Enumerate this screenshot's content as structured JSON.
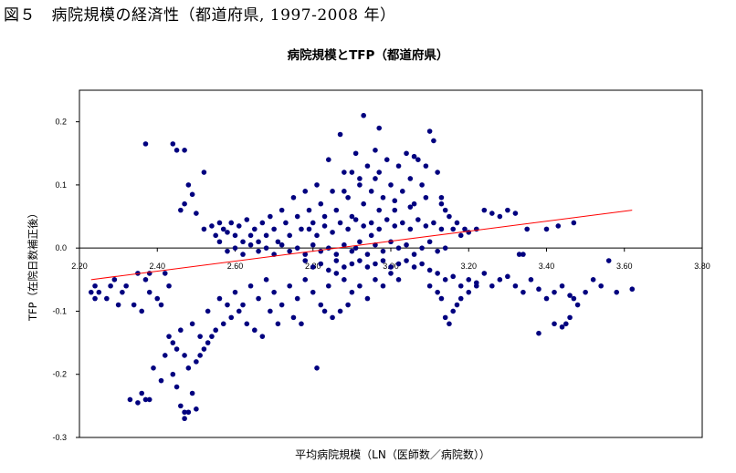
{
  "figure": {
    "title": "図５　病院規模の経済性（都道府県, 1997-2008 年）"
  },
  "chart_data": {
    "type": "scatter",
    "title": "病院規模とTFP（都道府県）",
    "xlabel": "平均病院規模（LN（医師数／病院数））",
    "ylabel": "TFP（在院日数補正後）",
    "xlim": [
      2.2,
      3.8
    ],
    "ylim": [
      -0.3,
      0.25
    ],
    "x_ticks": [
      "2.20",
      "2.40",
      "2.60",
      "2.80",
      "3.00",
      "3.20",
      "3.40",
      "3.60",
      "3.80"
    ],
    "y_ticks": [
      "0.2",
      "0.1",
      "0.0",
      "-0.1",
      "-0.2",
      "-0.3"
    ],
    "grid": false,
    "legend": "none",
    "point_color": "#00007f",
    "trend_color": "#ff0000",
    "trendline": {
      "x": [
        2.23,
        3.62
      ],
      "y": [
        -0.05,
        0.06
      ]
    },
    "series": [
      {
        "points": [
          [
            2.23,
            -0.07
          ],
          [
            2.24,
            -0.08
          ],
          [
            2.25,
            -0.07
          ],
          [
            2.27,
            -0.08
          ],
          [
            2.28,
            -0.06
          ],
          [
            2.3,
            -0.09
          ],
          [
            2.31,
            -0.07
          ],
          [
            2.32,
            -0.06
          ],
          [
            2.34,
            -0.09
          ],
          [
            2.35,
            -0.04
          ],
          [
            2.37,
            -0.05
          ],
          [
            2.38,
            -0.04
          ],
          [
            2.38,
            -0.07
          ],
          [
            2.24,
            -0.06
          ],
          [
            2.29,
            -0.05
          ],
          [
            2.36,
            -0.1
          ],
          [
            2.4,
            -0.08
          ],
          [
            2.42,
            -0.04
          ],
          [
            2.41,
            -0.09
          ],
          [
            2.43,
            -0.06
          ],
          [
            2.33,
            -0.24
          ],
          [
            2.35,
            -0.245
          ],
          [
            2.37,
            -0.24
          ],
          [
            2.38,
            -0.24
          ],
          [
            2.36,
            -0.23
          ],
          [
            2.39,
            -0.19
          ],
          [
            2.41,
            -0.21
          ],
          [
            2.42,
            -0.17
          ],
          [
            2.44,
            -0.2
          ],
          [
            2.45,
            -0.22
          ],
          [
            2.46,
            -0.25
          ],
          [
            2.47,
            -0.27
          ],
          [
            2.48,
            -0.26
          ],
          [
            2.5,
            -0.255
          ],
          [
            2.47,
            -0.26
          ],
          [
            2.49,
            -0.23
          ],
          [
            2.43,
            -0.14
          ],
          [
            2.44,
            -0.15
          ],
          [
            2.45,
            -0.16
          ],
          [
            2.47,
            -0.17
          ],
          [
            2.48,
            -0.19
          ],
          [
            2.5,
            -0.18
          ],
          [
            2.51,
            -0.17
          ],
          [
            2.52,
            -0.16
          ],
          [
            2.53,
            -0.15
          ],
          [
            2.54,
            -0.14
          ],
          [
            2.55,
            -0.13
          ],
          [
            2.57,
            -0.12
          ],
          [
            2.59,
            -0.11
          ],
          [
            2.61,
            -0.1
          ],
          [
            2.63,
            -0.12
          ],
          [
            2.65,
            -0.13
          ],
          [
            2.67,
            -0.14
          ],
          [
            2.69,
            -0.1
          ],
          [
            2.71,
            -0.12
          ],
          [
            2.46,
            -0.13
          ],
          [
            2.49,
            -0.12
          ],
          [
            2.51,
            -0.14
          ],
          [
            2.53,
            -0.1
          ],
          [
            2.56,
            -0.08
          ],
          [
            2.58,
            -0.09
          ],
          [
            2.6,
            -0.07
          ],
          [
            2.62,
            -0.09
          ],
          [
            2.64,
            -0.06
          ],
          [
            2.66,
            -0.08
          ],
          [
            2.68,
            -0.05
          ],
          [
            2.7,
            -0.07
          ],
          [
            2.72,
            -0.09
          ],
          [
            2.74,
            -0.06
          ],
          [
            2.76,
            -0.08
          ],
          [
            2.78,
            -0.05
          ],
          [
            2.8,
            -0.07
          ],
          [
            2.82,
            -0.09
          ],
          [
            2.84,
            -0.06
          ],
          [
            2.86,
            -0.04
          ],
          [
            2.88,
            -0.05
          ],
          [
            2.9,
            -0.07
          ],
          [
            2.92,
            -0.06
          ],
          [
            2.94,
            -0.08
          ],
          [
            2.96,
            -0.05
          ],
          [
            2.98,
            -0.06
          ],
          [
            3.0,
            -0.04
          ],
          [
            3.02,
            -0.05
          ],
          [
            2.81,
            -0.19
          ],
          [
            2.83,
            -0.1
          ],
          [
            2.85,
            -0.11
          ],
          [
            2.87,
            -0.1
          ],
          [
            2.89,
            -0.09
          ],
          [
            2.75,
            -0.11
          ],
          [
            2.77,
            -0.12
          ],
          [
            2.37,
            0.165
          ],
          [
            2.44,
            0.165
          ],
          [
            2.45,
            0.155
          ],
          [
            2.47,
            0.155
          ],
          [
            2.52,
            0.12
          ],
          [
            2.48,
            0.1
          ],
          [
            2.49,
            0.085
          ],
          [
            2.47,
            0.07
          ],
          [
            2.5,
            0.055
          ],
          [
            2.46,
            0.06
          ],
          [
            2.52,
            0.03
          ],
          [
            2.54,
            0.035
          ],
          [
            2.55,
            0.02
          ],
          [
            2.56,
            0.04
          ],
          [
            2.57,
            0.03
          ],
          [
            2.58,
            0.025
          ],
          [
            2.59,
            0.04
          ],
          [
            2.6,
            0.02
          ],
          [
            2.61,
            0.035
          ],
          [
            2.62,
            0.01
          ],
          [
            2.63,
            0.045
          ],
          [
            2.64,
            0.02
          ],
          [
            2.65,
            0.03
          ],
          [
            2.66,
            0.01
          ],
          [
            2.67,
            0.04
          ],
          [
            2.68,
            0.02
          ],
          [
            2.69,
            0.05
          ],
          [
            2.7,
            0.03
          ],
          [
            2.71,
            0.01
          ],
          [
            2.72,
            0.06
          ],
          [
            2.73,
            0.04
          ],
          [
            2.74,
            0.02
          ],
          [
            2.75,
            0.08
          ],
          [
            2.76,
            0.05
          ],
          [
            2.77,
            0.03
          ],
          [
            2.78,
            0.09
          ],
          [
            2.79,
            0.06
          ],
          [
            2.8,
            0.04
          ],
          [
            2.81,
            0.1
          ],
          [
            2.82,
            0.07
          ],
          [
            2.83,
            0.05
          ],
          [
            2.84,
            0.14
          ],
          [
            2.85,
            0.09
          ],
          [
            2.86,
            0.06
          ],
          [
            2.87,
            0.18
          ],
          [
            2.88,
            0.12
          ],
          [
            2.89,
            0.08
          ],
          [
            2.9,
            0.05
          ],
          [
            2.91,
            0.15
          ],
          [
            2.92,
            0.11
          ],
          [
            2.93,
            0.21
          ],
          [
            2.94,
            0.13
          ],
          [
            2.95,
            0.09
          ],
          [
            2.96,
            0.155
          ],
          [
            2.97,
            0.12
          ],
          [
            2.98,
            0.08
          ],
          [
            2.99,
            0.14
          ],
          [
            3.0,
            0.1
          ],
          [
            3.01,
            0.06
          ],
          [
            3.02,
            0.13
          ],
          [
            3.03,
            0.09
          ],
          [
            3.04,
            0.15
          ],
          [
            3.05,
            0.11
          ],
          [
            3.06,
            0.07
          ],
          [
            3.07,
            0.14
          ],
          [
            3.08,
            0.1
          ],
          [
            3.09,
            0.13
          ],
          [
            3.1,
            0.185
          ],
          [
            3.11,
            0.17
          ],
          [
            3.12,
            0.12
          ],
          [
            3.13,
            0.08
          ],
          [
            3.14,
            0.06
          ],
          [
            3.15,
            0.05
          ],
          [
            3.16,
            0.03
          ],
          [
            3.17,
            0.04
          ],
          [
            3.18,
            0.02
          ],
          [
            3.19,
            0.03
          ],
          [
            3.2,
            0.025
          ],
          [
            3.22,
            0.03
          ],
          [
            3.24,
            0.06
          ],
          [
            3.26,
            0.055
          ],
          [
            3.28,
            0.05
          ],
          [
            3.3,
            0.06
          ],
          [
            3.32,
            0.055
          ],
          [
            3.35,
            0.03
          ],
          [
            3.4,
            0.03
          ],
          [
            3.43,
            0.035
          ],
          [
            3.47,
            0.04
          ],
          [
            2.91,
            0.0
          ],
          [
            2.95,
            0.02
          ],
          [
            2.56,
            0.01
          ],
          [
            2.58,
            -0.005
          ],
          [
            2.6,
            0.0
          ],
          [
            2.62,
            -0.01
          ],
          [
            2.64,
            0.005
          ],
          [
            2.66,
            -0.005
          ],
          [
            2.68,
            0.0
          ],
          [
            2.7,
            -0.01
          ],
          [
            2.72,
            0.005
          ],
          [
            2.74,
            -0.005
          ],
          [
            2.76,
            0.0
          ],
          [
            2.78,
            -0.01
          ],
          [
            2.8,
            0.005
          ],
          [
            2.82,
            -0.005
          ],
          [
            2.84,
            0.0
          ],
          [
            2.86,
            -0.01
          ],
          [
            2.88,
            0.005
          ],
          [
            2.9,
            -0.005
          ],
          [
            2.92,
            0.01
          ],
          [
            2.94,
            -0.01
          ],
          [
            2.96,
            0.005
          ],
          [
            2.98,
            -0.005
          ],
          [
            3.0,
            0.01
          ],
          [
            3.02,
            0.0
          ],
          [
            3.04,
            0.005
          ],
          [
            3.06,
            -0.01
          ],
          [
            3.08,
            0.0
          ],
          [
            3.1,
            0.01
          ],
          [
            3.12,
            -0.005
          ],
          [
            3.14,
            0.0
          ],
          [
            2.78,
            -0.02
          ],
          [
            2.8,
            -0.03
          ],
          [
            2.82,
            -0.025
          ],
          [
            2.84,
            -0.035
          ],
          [
            2.86,
            -0.02
          ],
          [
            2.88,
            -0.03
          ],
          [
            2.9,
            -0.025
          ],
          [
            2.92,
            -0.02
          ],
          [
            2.94,
            -0.03
          ],
          [
            2.96,
            -0.025
          ],
          [
            2.98,
            -0.02
          ],
          [
            3.0,
            -0.03
          ],
          [
            3.02,
            -0.025
          ],
          [
            3.04,
            -0.02
          ],
          [
            3.06,
            -0.03
          ],
          [
            3.08,
            -0.025
          ],
          [
            3.1,
            -0.035
          ],
          [
            3.12,
            -0.04
          ],
          [
            3.14,
            -0.05
          ],
          [
            3.16,
            -0.045
          ],
          [
            3.18,
            -0.06
          ],
          [
            3.2,
            -0.05
          ],
          [
            3.22,
            -0.055
          ],
          [
            3.24,
            -0.04
          ],
          [
            3.26,
            -0.06
          ],
          [
            3.28,
            -0.05
          ],
          [
            3.3,
            -0.045
          ],
          [
            3.32,
            -0.06
          ],
          [
            3.34,
            -0.07
          ],
          [
            3.36,
            -0.05
          ],
          [
            3.38,
            -0.065
          ],
          [
            3.4,
            -0.08
          ],
          [
            3.42,
            -0.07
          ],
          [
            3.44,
            -0.06
          ],
          [
            3.46,
            -0.075
          ],
          [
            3.48,
            -0.09
          ],
          [
            3.5,
            -0.07
          ],
          [
            3.54,
            -0.06
          ],
          [
            3.58,
            -0.07
          ],
          [
            3.62,
            -0.065
          ],
          [
            3.38,
            -0.135
          ],
          [
            3.42,
            -0.12
          ],
          [
            3.44,
            -0.125
          ],
          [
            3.45,
            -0.12
          ],
          [
            3.46,
            -0.11
          ],
          [
            3.47,
            -0.08
          ],
          [
            3.52,
            -0.05
          ],
          [
            3.56,
            -0.02
          ],
          [
            3.34,
            -0.01
          ],
          [
            3.33,
            -0.01
          ],
          [
            3.12,
            -0.07
          ],
          [
            3.13,
            -0.08
          ],
          [
            3.14,
            -0.11
          ],
          [
            3.15,
            -0.12
          ],
          [
            3.16,
            -0.1
          ],
          [
            3.17,
            -0.09
          ],
          [
            3.18,
            -0.08
          ],
          [
            3.2,
            -0.07
          ],
          [
            3.22,
            -0.06
          ],
          [
            3.1,
            -0.06
          ],
          [
            2.79,
            0.03
          ],
          [
            2.81,
            0.02
          ],
          [
            2.83,
            0.035
          ],
          [
            2.85,
            0.025
          ],
          [
            2.87,
            0.04
          ],
          [
            2.89,
            0.03
          ],
          [
            2.91,
            0.045
          ],
          [
            2.93,
            0.035
          ],
          [
            2.95,
            0.04
          ],
          [
            2.97,
            0.03
          ],
          [
            2.99,
            0.045
          ],
          [
            3.01,
            0.035
          ],
          [
            3.03,
            0.04
          ],
          [
            3.05,
            0.03
          ],
          [
            3.07,
            0.045
          ],
          [
            3.09,
            0.035
          ],
          [
            3.11,
            0.04
          ],
          [
            3.13,
            0.03
          ],
          [
            2.93,
            0.07
          ],
          [
            2.97,
            0.06
          ],
          [
            3.01,
            0.075
          ],
          [
            3.05,
            0.065
          ],
          [
            3.09,
            0.08
          ],
          [
            3.13,
            0.07
          ],
          [
            2.97,
            0.19
          ],
          [
            3.06,
            0.145
          ],
          [
            2.9,
            0.12
          ],
          [
            2.88,
            0.09
          ],
          [
            2.92,
            0.1
          ],
          [
            2.96,
            0.11
          ]
        ]
      }
    ]
  }
}
